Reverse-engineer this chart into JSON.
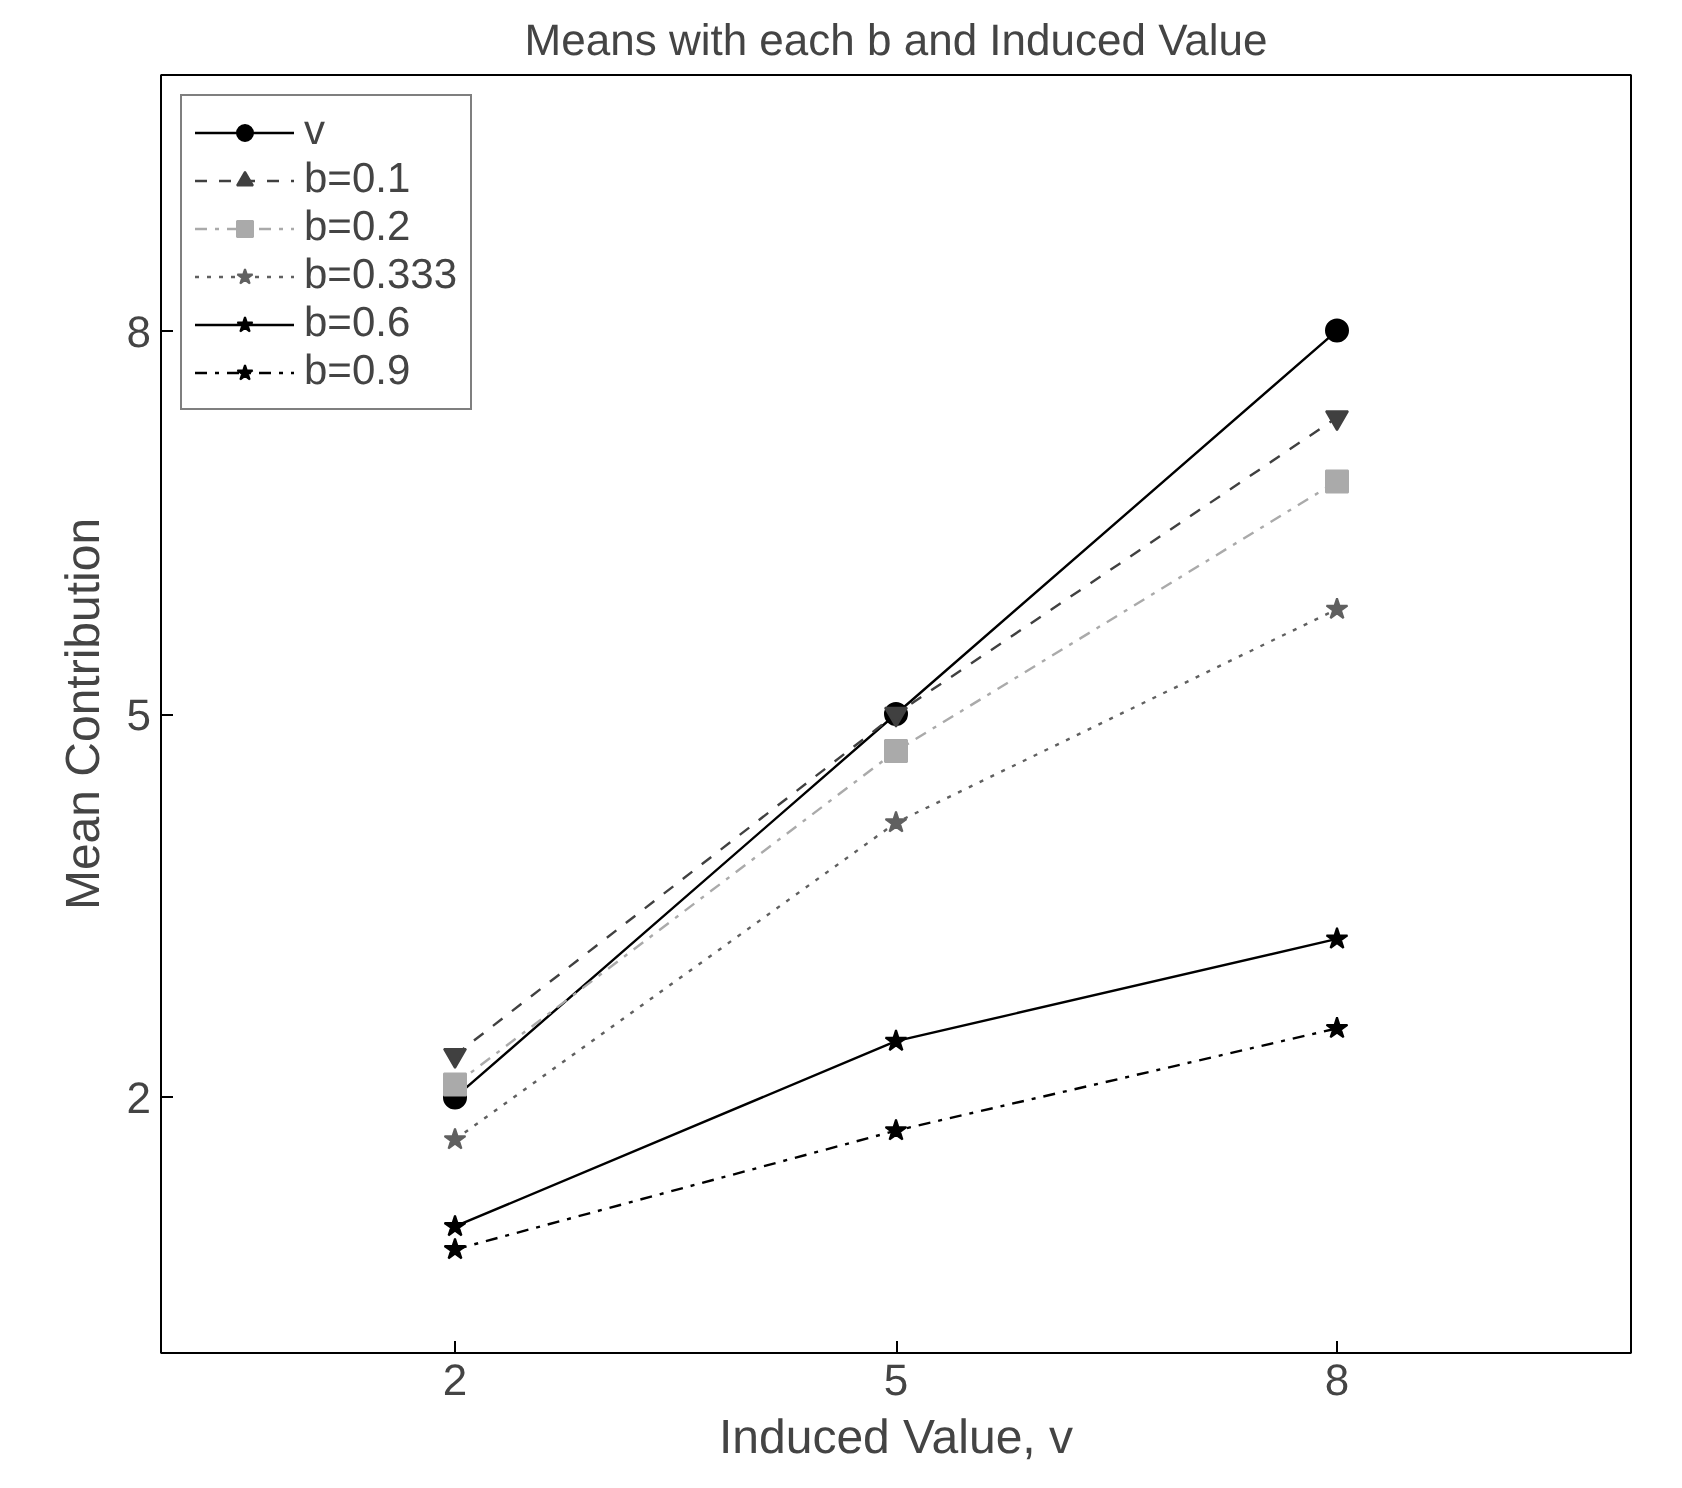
{
  "chart_data": {
    "type": "line",
    "title": "Means with each b and Induced Value",
    "xlabel": "Induced Value, v",
    "ylabel": "Mean Contribution",
    "x": [
      2,
      5,
      8
    ],
    "xlim": [
      0,
      10
    ],
    "ylim": [
      0,
      10
    ],
    "xticks": [
      2,
      5,
      8
    ],
    "yticks": [
      2,
      5,
      8
    ],
    "grid": false,
    "legend": "top left",
    "series": [
      {
        "name": "v",
        "color": "#000000",
        "marker": "circle",
        "line_style": "solid",
        "values": [
          2.0,
          5.0,
          8.0
        ]
      },
      {
        "name": "b=0.1",
        "color": "#404040",
        "marker": "triangle",
        "line_style": "dashed",
        "values": [
          2.33,
          5.0,
          7.32
        ]
      },
      {
        "name": "b=0.2",
        "color": "#aaaaaa",
        "marker": "square",
        "line_style": "dashdot",
        "values": [
          2.1,
          4.71,
          6.82
        ]
      },
      {
        "name": "b=0.333",
        "color": "#606060",
        "marker": "star",
        "line_style": "dotted",
        "values": [
          1.67,
          4.15,
          5.82
        ]
      },
      {
        "name": "b=0.6",
        "color": "#000000",
        "marker": "star",
        "line_style": "solid",
        "values": [
          0.99,
          2.44,
          3.24
        ]
      },
      {
        "name": "b=0.9",
        "color": "#000000",
        "marker": "star",
        "line_style": "dashdot",
        "values": [
          0.81,
          1.74,
          2.54
        ]
      }
    ]
  }
}
